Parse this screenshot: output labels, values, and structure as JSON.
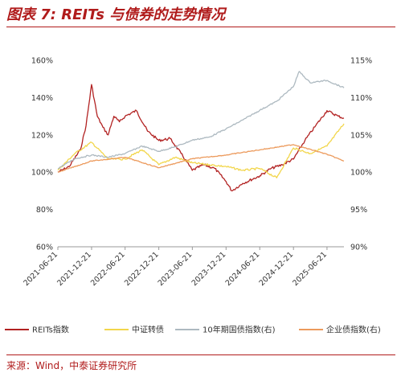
{
  "header": {
    "title": "图表 7: REITs 与债券的走势情况"
  },
  "footer": {
    "source": "来源：Wind，中泰证券研究所"
  },
  "chart_data": {
    "type": "line",
    "title": "图表 7: REITs 与债券的走势情况",
    "x_ticks": [
      "2021-06-21",
      "2021-12-21",
      "2022-06-21",
      "2022-12-21",
      "2023-06-21",
      "2023-12-21",
      "2024-06-21",
      "2024-12-21",
      "2025-06-21"
    ],
    "x_range": [
      "2021-06-21",
      "2025-09-21"
    ],
    "y_left": {
      "ticks": [
        "60%",
        "80%",
        "100%",
        "120%",
        "140%",
        "160%"
      ],
      "range": [
        60,
        160
      ]
    },
    "y_right": {
      "ticks": [
        "90%",
        "95%",
        "100%",
        "105%",
        "110%",
        "115%"
      ],
      "range": [
        90,
        115
      ]
    },
    "grid": false,
    "legend": "bottom",
    "series": [
      {
        "name": "REITs指数",
        "axis": "left",
        "color": "#b22222",
        "x": [
          "2021-06-21",
          "2021-08-21",
          "2021-10-21",
          "2021-11-21",
          "2021-12-21",
          "2022-01-21",
          "2022-02-21",
          "2022-03-21",
          "2022-04-21",
          "2022-05-21",
          "2022-06-21",
          "2022-08-21",
          "2022-10-21",
          "2022-12-21",
          "2023-02-21",
          "2023-04-21",
          "2023-06-21",
          "2023-08-21",
          "2023-10-21",
          "2023-12-21",
          "2024-01-21",
          "2024-03-21",
          "2024-06-21",
          "2024-08-21",
          "2024-10-21",
          "2024-12-21",
          "2025-02-21",
          "2025-04-21",
          "2025-06-21",
          "2025-08-21",
          "2025-09-21"
        ],
        "values": [
          100,
          103,
          112,
          125,
          147,
          130,
          124,
          120,
          130,
          127,
          130,
          133,
          122,
          117,
          118,
          110,
          101,
          104,
          102,
          95,
          90,
          94,
          98,
          102,
          104,
          107,
          117,
          125,
          133,
          130,
          129
        ]
      },
      {
        "name": "中证转债",
        "axis": "left",
        "color": "#f2d64b",
        "x": [
          "2021-06-21",
          "2021-09-21",
          "2021-12-21",
          "2022-03-21",
          "2022-06-21",
          "2022-09-21",
          "2022-12-21",
          "2023-03-21",
          "2023-06-21",
          "2023-09-21",
          "2023-12-21",
          "2024-03-21",
          "2024-06-21",
          "2024-09-21",
          "2024-12-21",
          "2025-03-21",
          "2025-06-21",
          "2025-09-21"
        ],
        "values": [
          101,
          110,
          116,
          107,
          107,
          112,
          104,
          108,
          105,
          104,
          103,
          101,
          102,
          97,
          113,
          110,
          114,
          126
        ]
      },
      {
        "name": "10年期国债指数(右)",
        "axis": "right",
        "color": "#adb9c0",
        "x": [
          "2021-06-21",
          "2021-09-21",
          "2021-12-21",
          "2022-03-21",
          "2022-06-21",
          "2022-09-21",
          "2022-12-21",
          "2023-03-21",
          "2023-06-21",
          "2023-09-21",
          "2023-12-21",
          "2024-03-21",
          "2024-06-21",
          "2024-09-21",
          "2024-12-21",
          "2025-01-21",
          "2025-03-21",
          "2025-06-21",
          "2025-09-21"
        ],
        "values": [
          100.5,
          101.8,
          102.3,
          102.0,
          102.5,
          103.5,
          102.8,
          103.4,
          104.3,
          104.7,
          105.8,
          107.0,
          108.3,
          109.5,
          111.5,
          113.5,
          112.0,
          112.3,
          111.3
        ]
      },
      {
        "name": "企业债指数(右)",
        "axis": "right",
        "color": "#ec9a5c",
        "x": [
          "2021-06-21",
          "2021-12-21",
          "2022-06-21",
          "2022-12-21",
          "2023-06-21",
          "2023-12-21",
          "2024-06-21",
          "2024-12-21",
          "2025-06-21",
          "2025-09-21"
        ],
        "values": [
          100.0,
          101.5,
          102.0,
          100.6,
          101.8,
          102.3,
          103.0,
          103.7,
          102.4,
          101.5
        ]
      }
    ]
  }
}
